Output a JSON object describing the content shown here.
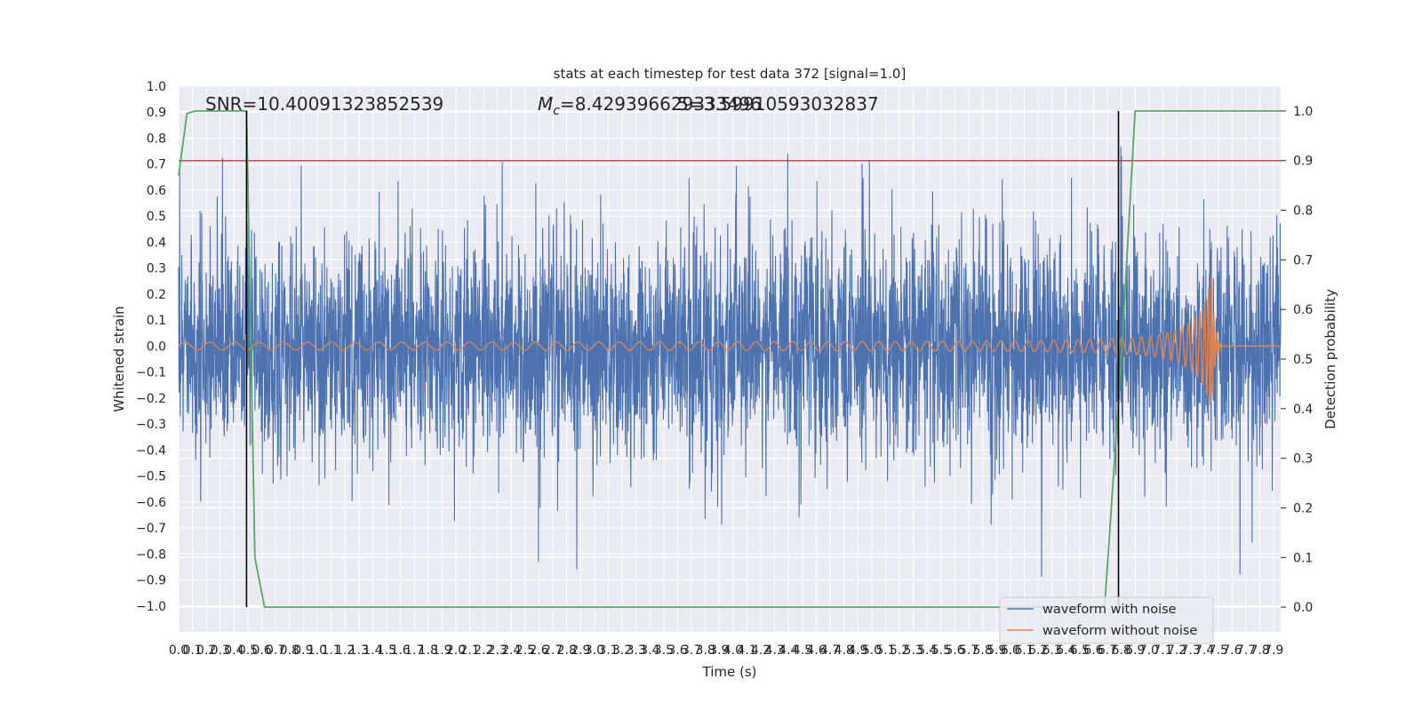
{
  "chart_data": {
    "type": "line",
    "title": "stats at each timestep for test data 372 [signal=1.0]",
    "xlabel": "Time (s)",
    "ylabel": "Whitened strain",
    "y2label": "Detection probability",
    "xlim": [
      0.0,
      7.95
    ],
    "ylim": [
      -1.1,
      1.0
    ],
    "y2lim": [
      -0.05,
      1.05
    ],
    "x_ticks": [
      "0.0",
      "0.1",
      "0.2",
      "0.3",
      "0.4",
      "0.5",
      "0.6",
      "0.7",
      "0.8",
      "0.9",
      "1.0",
      "1.1",
      "1.2",
      "1.3",
      "1.4",
      "1.5",
      "1.6",
      "1.7",
      "1.8",
      "1.9",
      "2.0",
      "2.1",
      "2.2",
      "2.3",
      "2.4",
      "2.5",
      "2.6",
      "2.7",
      "2.8",
      "2.9",
      "3.0",
      "3.1",
      "3.2",
      "3.3",
      "3.4",
      "3.5",
      "3.6",
      "3.7",
      "3.8",
      "3.9",
      "4.0",
      "4.1",
      "4.2",
      "4.3",
      "4.4",
      "4.5",
      "4.6",
      "4.7",
      "4.8",
      "4.9",
      "5.0",
      "5.1",
      "5.2",
      "5.3",
      "5.4",
      "5.5",
      "5.6",
      "5.7",
      "5.8",
      "5.9",
      "6.0",
      "6.1",
      "6.2",
      "6.3",
      "6.4",
      "6.5",
      "6.6",
      "6.7",
      "6.8",
      "6.9",
      "7.0",
      "7.1",
      "7.2",
      "7.3",
      "7.4",
      "7.5",
      "7.6",
      "7.7",
      "7.8",
      "7.9"
    ],
    "y_ticks": [
      "1.0",
      "0.9",
      "0.8",
      "0.7",
      "0.6",
      "0.5",
      "0.4",
      "0.3",
      "0.2",
      "0.1",
      "0.0",
      "−0.1",
      "−0.2",
      "−0.3",
      "−0.4",
      "−0.5",
      "−0.6",
      "−0.7",
      "−0.8",
      "−0.9",
      "−1.0"
    ],
    "y2_ticks": [
      "1.0",
      "0.9",
      "0.8",
      "0.7",
      "0.6",
      "0.5",
      "0.4",
      "0.3",
      "0.2",
      "0.1",
      "0.0"
    ],
    "annotations": {
      "snr": "SNR=10.40091323852539",
      "mc_symbol": "M",
      "mc_sub": "c",
      "mc_text": "=8.429396629333496",
      "mc_overlap": "5=3.5991059303283­7"
    },
    "threshold": 0.9,
    "vlines_x": [
      0.49,
      6.78
    ],
    "series": [
      {
        "name": "waveform with noise",
        "color": "#4c72b0",
        "description_params": {
          "sigma": 0.22,
          "spikes_up_max": 0.9,
          "spikes_down_min": -1.0
        }
      },
      {
        "name": "waveform without noise",
        "color": "#dd8452",
        "chirp": {
          "t_start": 0.0,
          "t_merger": 7.45,
          "amp_start": 0.012,
          "amp_peak": 0.23,
          "ringdown_end": 7.52
        }
      },
      {
        "name": "detection probability",
        "color": "#55a868",
        "axis": "right",
        "points": [
          [
            0.0,
            0.87
          ],
          [
            0.06,
            0.995
          ],
          [
            0.12,
            1.0
          ],
          [
            0.49,
            1.0
          ],
          [
            0.55,
            0.1
          ],
          [
            0.62,
            0.0
          ],
          [
            6.68,
            0.0
          ],
          [
            6.8,
            0.5
          ],
          [
            6.9,
            1.0
          ],
          [
            7.95,
            1.0
          ]
        ]
      }
    ],
    "threshold_color": "#c44e52",
    "legend": {
      "position": "lower-right",
      "entries": [
        "waveform with noise",
        "waveform without noise"
      ]
    }
  }
}
